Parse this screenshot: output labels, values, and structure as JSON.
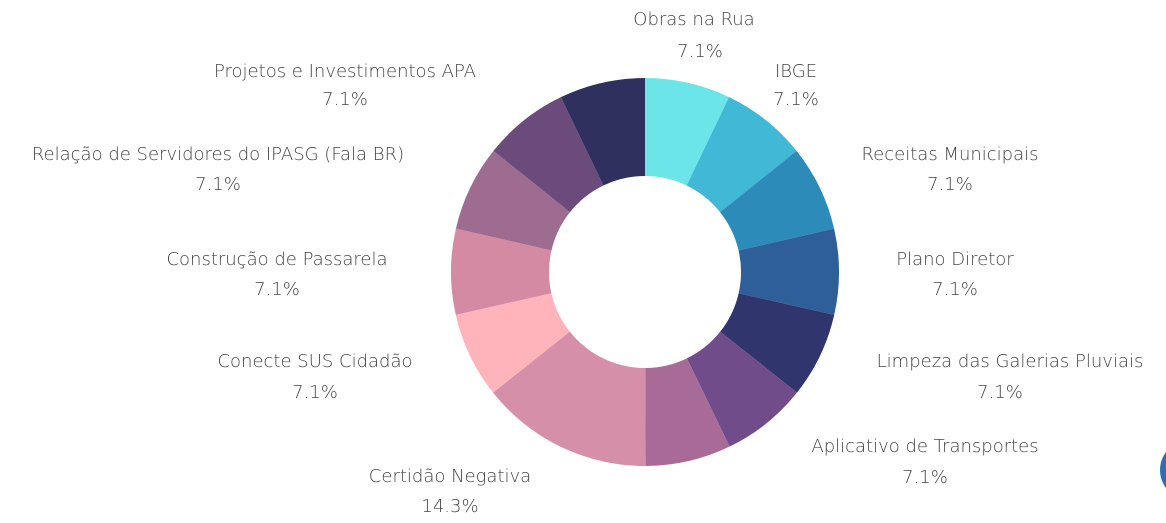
{
  "chart_data": {
    "type": "donut",
    "categories": [
      "Obras na Rua",
      "IBGE",
      "Receitas Municipais",
      "Plano Diretor",
      "Limpeza das Galerias Pluviais",
      "Aplicativo de Transportes",
      null,
      "Certidão Negativa",
      "Conecte SUS Cidadão",
      "Construção de Passarela",
      "Relação de Servidores do IPASG (Fala BR)",
      null,
      "Projetos e Investimentos APA"
    ],
    "values": [
      7.1,
      7.1,
      7.1,
      7.1,
      7.1,
      7.1,
      7.1,
      14.3,
      7.1,
      7.1,
      7.1,
      7.1,
      7.1
    ],
    "value_labels": [
      "7.1%",
      "7.1%",
      "7.1%",
      "7.1%",
      "7.1%",
      "7.1%",
      null,
      "14.3%",
      "7.1%",
      "7.1%",
      "7.1%",
      null,
      "7.1%"
    ],
    "colors": [
      "#6ce5e8",
      "#41b8d5",
      "#2d8bba",
      "#2f5f98",
      "#31356e",
      "#704c8a",
      "#a86b98",
      "#d68fa8",
      "#ffb4bb",
      "#d38aa2",
      "#9e6b91",
      "#6a4b7b",
      "#30305e"
    ]
  }
}
